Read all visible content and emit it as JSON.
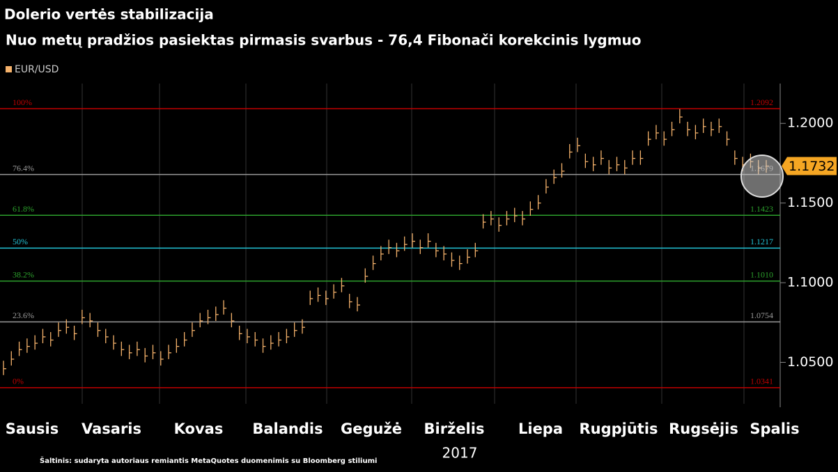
{
  "chart_data": {
    "type": "ohlc",
    "title": "Dolerio vertės stabilizacija",
    "subtitle": "Nuo metų pradžios pasiektas pirmasis svarbus - 76,4 Fibonači korekcinis lygmuo",
    "series_name": "EUR/USD",
    "color": "#f5b26b",
    "months": [
      "Sausis",
      "Vasaris",
      "Kovas",
      "Balandis",
      "Gegužė",
      "Birželis",
      "Liepa",
      "Rugpjūtis",
      "Rugsėjis",
      "Spalis"
    ],
    "x_label": "2017",
    "source": "Šaltinis: sudaryta autoriaus remiantis MetaQuotes duomenimis su Bloomberg stiliumi",
    "ylim": [
      1.024,
      1.225
    ],
    "yticks": [
      {
        "value": 1.05,
        "label": "1.0500"
      },
      {
        "value": 1.1,
        "label": "1.1000"
      },
      {
        "value": 1.15,
        "label": "1.1500"
      },
      {
        "value": 1.2,
        "label": "1.2000"
      }
    ],
    "last_price": 1.1732,
    "fib_levels": [
      {
        "name": "100%",
        "value": 1.2092,
        "color": "#c00000"
      },
      {
        "name": "76.4%",
        "value": 1.1679,
        "color": "#9a9a9a"
      },
      {
        "name": "61.8%",
        "value": 1.1423,
        "color": "#2ca02c"
      },
      {
        "name": "50%",
        "value": 1.1217,
        "color": "#22c3d6"
      },
      {
        "name": "38.2%",
        "value": 1.101,
        "value_label": "1.1010",
        "color": "#2ca02c"
      },
      {
        "name": "23.6%",
        "value": 1.0754,
        "color": "#9a9a9a"
      },
      {
        "name": "0%",
        "value": 1.0341,
        "color": "#c00000"
      }
    ],
    "values": [
      1.046,
      1.052,
      1.058,
      1.06,
      1.062,
      1.066,
      1.064,
      1.07,
      1.072,
      1.068,
      1.078,
      1.076,
      1.07,
      1.066,
      1.062,
      1.058,
      1.056,
      1.058,
      1.054,
      1.056,
      1.052,
      1.056,
      1.06,
      1.064,
      1.07,
      1.076,
      1.078,
      1.08,
      1.084,
      1.076,
      1.068,
      1.066,
      1.064,
      1.06,
      1.062,
      1.064,
      1.066,
      1.07,
      1.072,
      1.09,
      1.092,
      1.09,
      1.094,
      1.098,
      1.088,
      1.086,
      1.104,
      1.112,
      1.118,
      1.122,
      1.12,
      1.124,
      1.126,
      1.122,
      1.126,
      1.12,
      1.118,
      1.114,
      1.112,
      1.116,
      1.12,
      1.138,
      1.14,
      1.136,
      1.14,
      1.142,
      1.14,
      1.146,
      1.15,
      1.16,
      1.166,
      1.17,
      1.182,
      1.186,
      1.176,
      1.174,
      1.178,
      1.172,
      1.174,
      1.172,
      1.178,
      1.178,
      1.19,
      1.194,
      1.19,
      1.196,
      1.204,
      1.196,
      1.194,
      1.198,
      1.196,
      1.198,
      1.19,
      1.178,
      1.174,
      1.176,
      1.172,
      1.1732
    ],
    "high": [
      1.051,
      1.057,
      1.063,
      1.065,
      1.067,
      1.071,
      1.069,
      1.075,
      1.077,
      1.073,
      1.083,
      1.081,
      1.075,
      1.071,
      1.067,
      1.063,
      1.061,
      1.063,
      1.059,
      1.061,
      1.057,
      1.061,
      1.065,
      1.069,
      1.075,
      1.081,
      1.083,
      1.085,
      1.089,
      1.081,
      1.073,
      1.071,
      1.069,
      1.065,
      1.067,
      1.069,
      1.071,
      1.075,
      1.077,
      1.095,
      1.097,
      1.095,
      1.099,
      1.103,
      1.093,
      1.091,
      1.109,
      1.117,
      1.123,
      1.127,
      1.125,
      1.129,
      1.131,
      1.127,
      1.131,
      1.125,
      1.123,
      1.119,
      1.117,
      1.121,
      1.125,
      1.143,
      1.145,
      1.141,
      1.145,
      1.147,
      1.145,
      1.151,
      1.155,
      1.165,
      1.171,
      1.175,
      1.187,
      1.191,
      1.181,
      1.179,
      1.183,
      1.177,
      1.179,
      1.177,
      1.183,
      1.183,
      1.195,
      1.199,
      1.195,
      1.201,
      1.209,
      1.201,
      1.199,
      1.203,
      1.201,
      1.203,
      1.195,
      1.183,
      1.179,
      1.181,
      1.177,
      1.177
    ],
    "low": [
      1.042,
      1.048,
      1.054,
      1.056,
      1.058,
      1.062,
      1.06,
      1.066,
      1.068,
      1.064,
      1.074,
      1.072,
      1.066,
      1.062,
      1.058,
      1.054,
      1.052,
      1.054,
      1.05,
      1.052,
      1.048,
      1.052,
      1.056,
      1.06,
      1.066,
      1.072,
      1.074,
      1.076,
      1.08,
      1.072,
      1.064,
      1.062,
      1.06,
      1.056,
      1.058,
      1.06,
      1.062,
      1.066,
      1.068,
      1.086,
      1.088,
      1.086,
      1.09,
      1.094,
      1.084,
      1.082,
      1.1,
      1.108,
      1.114,
      1.118,
      1.116,
      1.12,
      1.122,
      1.118,
      1.122,
      1.116,
      1.114,
      1.11,
      1.108,
      1.112,
      1.116,
      1.134,
      1.136,
      1.132,
      1.136,
      1.138,
      1.136,
      1.142,
      1.146,
      1.156,
      1.162,
      1.166,
      1.178,
      1.182,
      1.172,
      1.17,
      1.174,
      1.168,
      1.17,
      1.168,
      1.174,
      1.174,
      1.186,
      1.19,
      1.186,
      1.192,
      1.2,
      1.192,
      1.19,
      1.194,
      1.192,
      1.194,
      1.186,
      1.174,
      1.17,
      1.172,
      1.168,
      1.169
    ]
  }
}
